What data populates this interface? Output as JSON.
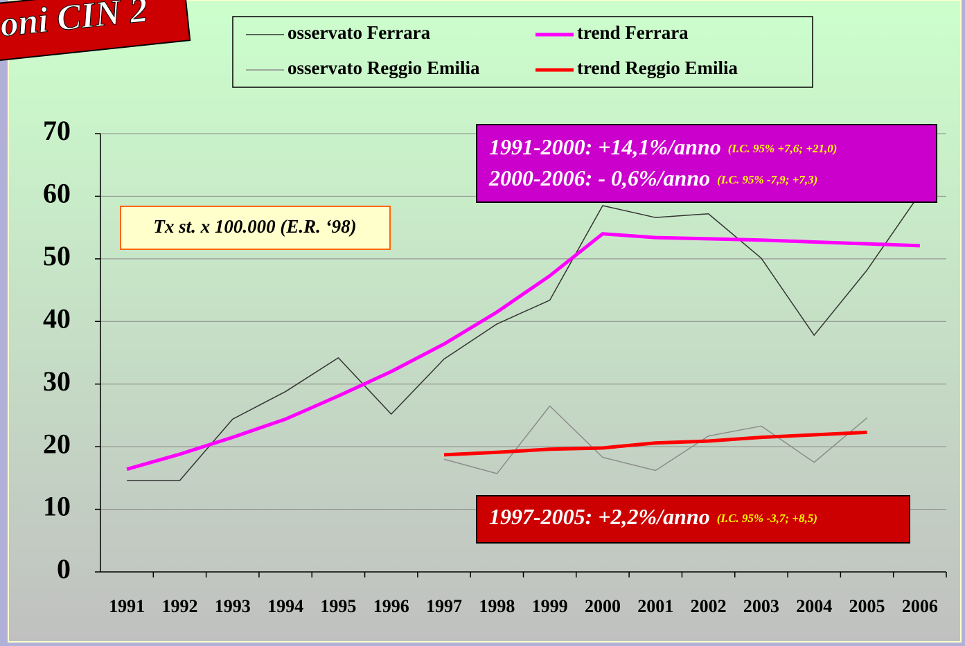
{
  "chart_data": {
    "type": "line",
    "title": "oni CIN 2",
    "note": "Tx st. x 100.000 (E.R. ‘98)",
    "annotations": [
      {
        "text": "1991-2000: +14,1%/anno",
        "detail": "(I.C. 95% +7,6; +21,0)"
      },
      {
        "text": "2000-2006:  - 0,6%/anno",
        "detail": "(I.C. 95% -7,9; +7,3)"
      },
      {
        "text": "1997-2005: +2,2%/anno",
        "detail": "(I.C. 95% -3,7; +8,5)"
      }
    ],
    "categories": [
      "1991",
      "1992",
      "1993",
      "1994",
      "1995",
      "1996",
      "1997",
      "1998",
      "1999",
      "2000",
      "2001",
      "2002",
      "2003",
      "2004",
      "2005",
      "2006"
    ],
    "series": [
      {
        "name": "osservato Ferrara",
        "color": "#333333",
        "width": 1.5,
        "values": [
          14.6,
          14.6,
          24.4,
          28.8,
          34.2,
          25.2,
          34.0,
          39.6,
          43.4,
          58.5,
          56.6,
          57.2,
          50.1,
          37.8,
          48.2,
          60.4
        ]
      },
      {
        "name": "trend Ferrara",
        "color": "#ff00ff",
        "width": 5,
        "values": [
          16.4,
          18.8,
          21.5,
          24.4,
          28.1,
          32.0,
          36.4,
          41.5,
          47.3,
          54.0,
          53.4,
          53.2,
          53.0,
          52.7,
          52.4,
          52.1
        ]
      },
      {
        "name": "osservato Reggio Emilia",
        "color": "#8c8c8c",
        "width": 1.5,
        "values": [
          null,
          null,
          null,
          null,
          null,
          null,
          18.0,
          15.7,
          26.5,
          18.3,
          16.2,
          21.7,
          23.3,
          17.5,
          24.6,
          null
        ]
      },
      {
        "name": "trend Reggio Emilia",
        "color": "#ff0000",
        "width": 5,
        "values": [
          null,
          null,
          null,
          null,
          null,
          null,
          18.7,
          19.1,
          19.6,
          19.8,
          20.6,
          20.9,
          21.5,
          21.9,
          22.3,
          null
        ]
      }
    ],
    "ylim": [
      0,
      70
    ],
    "yticks": [
      0,
      10,
      20,
      30,
      40,
      50,
      60,
      70
    ],
    "grid": true
  }
}
